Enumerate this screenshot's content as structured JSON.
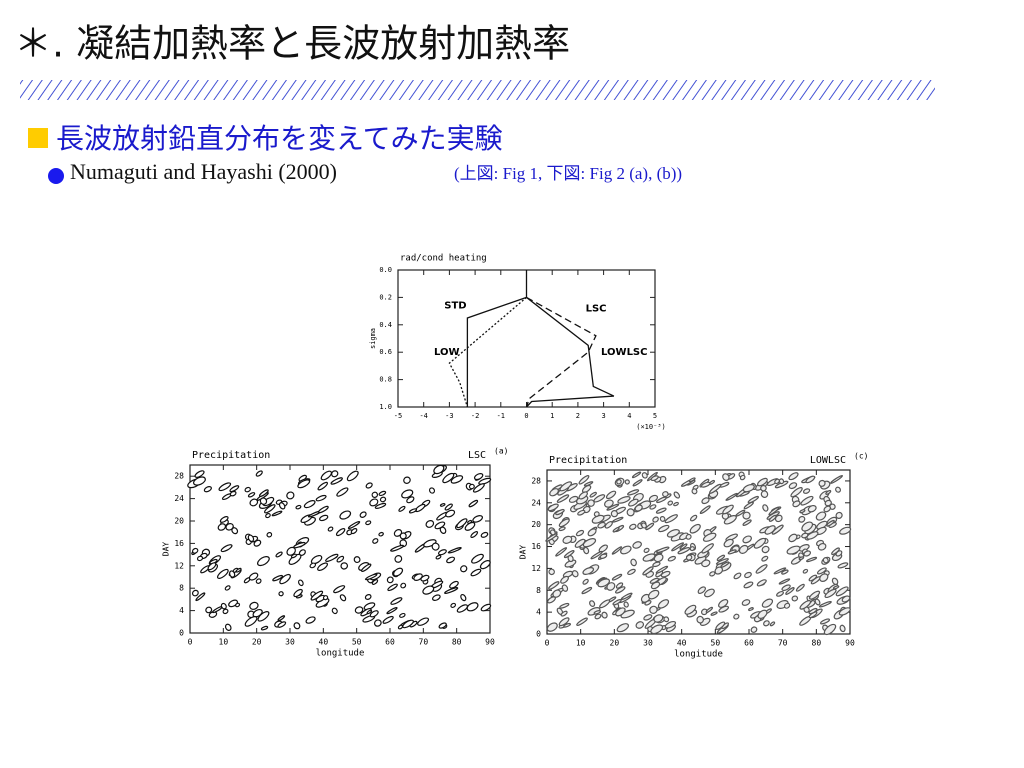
{
  "slide": {
    "title": "＊. 凝結加熱率と長波放射加熱率",
    "bullet": "長波放射鉛直分布を変えてみた実験",
    "sub_bullet": {
      "text": "Numaguti and Hayashi (2000)",
      "note": "(上図: Fig 1, 下図: Fig 2 (a), (b))"
    }
  },
  "chart_data": [
    {
      "type": "line",
      "title": "rad/cond heating",
      "y_label": "sigma",
      "x_unit": "(×10⁻³)",
      "xlim": [
        -5,
        5
      ],
      "xticks": [
        -5,
        -4,
        -3,
        -2,
        -1,
        0,
        1,
        2,
        3,
        4,
        5
      ],
      "ylim": [
        0,
        1
      ],
      "y_inverted": true,
      "yticks": [
        {
          "value": 0,
          "label": "0.0"
        },
        {
          "value": 0.2,
          "label": "0.2"
        },
        {
          "value": 0.4,
          "label": "0.4"
        },
        {
          "value": 0.6,
          "label": "0.6"
        },
        {
          "value": 0.8,
          "label": "0.8"
        },
        {
          "value": 1,
          "label": "1.0"
        }
      ],
      "series": [
        {
          "name": "STD",
          "style": "solid",
          "x": [
            0,
            -2.3,
            -2.3
          ],
          "values": [
            0.2,
            0.35,
            1
          ]
        },
        {
          "name": "LSC",
          "style": "solid",
          "x": [
            0,
            0,
            2.4,
            2.6,
            3.4,
            0.2,
            0
          ],
          "values": [
            0,
            0.2,
            0.55,
            0.85,
            0.92,
            0.96,
            1
          ]
        },
        {
          "name": "LOW",
          "style": "dotted",
          "x": [
            0,
            -3,
            -2.6,
            -2.3
          ],
          "values": [
            0.2,
            0.68,
            0.82,
            1
          ]
        },
        {
          "name": "LOWLSC",
          "style": "dashed",
          "x": [
            0,
            2.7,
            2.4,
            0.1,
            0
          ],
          "values": [
            0.2,
            0.48,
            0.6,
            0.94,
            1
          ]
        }
      ]
    },
    {
      "type": "contour",
      "title": "Precipitation",
      "label": "LSC",
      "panel": "(a)",
      "x_label": "longitude",
      "y_label": "DAY",
      "xlim": [
        0,
        90
      ],
      "xticks": [
        0,
        10,
        20,
        30,
        40,
        50,
        60,
        70,
        80,
        90
      ],
      "ylim": [
        0,
        30
      ],
      "yticks": [
        0,
        4,
        8,
        12,
        16,
        20,
        24,
        28
      ]
    },
    {
      "type": "contour",
      "title": "Precipitation",
      "label": "LOWLSC",
      "panel": "(c)",
      "x_label": "longitude",
      "y_label": "DAY",
      "xlim": [
        0,
        90
      ],
      "xticks": [
        0,
        10,
        20,
        30,
        40,
        50,
        60,
        70,
        80,
        90
      ],
      "ylim": [
        0,
        30
      ],
      "yticks": [
        0,
        4,
        8,
        12,
        16,
        20,
        24,
        28
      ]
    }
  ]
}
